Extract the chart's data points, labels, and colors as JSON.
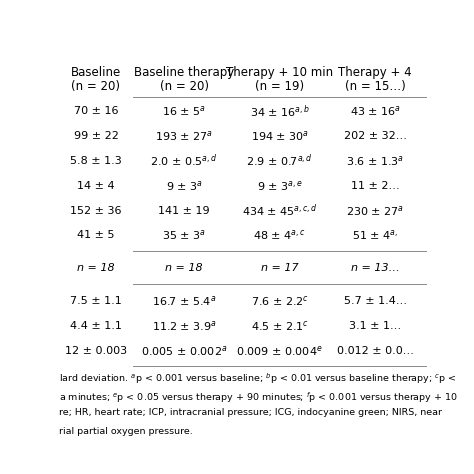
{
  "col_header_top": [
    "Baseline",
    "Baseline therapy",
    "Therapy + 10 min",
    "Therapy + 4⁠"
  ],
  "col_header_bottom": [
    "(n = 20)",
    "(n = 20)",
    "(n = 19)",
    "(n = 15…)"
  ],
  "rows": [
    [
      "70 ± 16",
      "16 ± 5$^{a}$",
      "34 ± 16$^{a,b}$",
      "43 ± 16$^{a}$"
    ],
    [
      "99 ± 22",
      "193 ± 27$^{a}$",
      "194 ± 30$^{a}$",
      "202 ± 32…"
    ],
    [
      "5.8 ± 1.3",
      "2.0 ± 0.5$^{a,d}$",
      "2.9 ± 0.7$^{a,d}$",
      "3.6 ± 1.3$^{a}$"
    ],
    [
      "14 ± 4",
      "9 ± 3$^{a}$",
      "9 ± 3$^{a,e}$",
      "11 ± 2…"
    ],
    [
      "152 ± 36",
      "141 ± 19",
      "434 ± 45$^{a,c,d}$",
      "230 ± 27$^{a}$"
    ],
    [
      "41 ± 5",
      "35 ± 3$^{a}$",
      "48 ± 4$^{a,c}$",
      "51 ± 4$^{a,}$"
    ],
    [
      "n = 18",
      "n = 18",
      "n = 17",
      "n = 13…"
    ],
    [
      "7.5 ± 1.1",
      "16.7 ± 5.4$^{a}$",
      "7.6 ± 2.2$^{c}$",
      "5.7 ± 1.4…"
    ],
    [
      "4.4 ± 1.1",
      "11.2 ± 3.9$^{a}$",
      "4.5 ± 2.1$^{c}$",
      "3.1 ± 1…"
    ],
    [
      "12 ± 0.003",
      "0.005 ± 0.002$^{a}$",
      "0.009 ± 0.004$^{e}$",
      "0.012 ± 0.0…"
    ]
  ],
  "italic_row_indices": [
    6
  ],
  "separator_after_rows": [
    5,
    6,
    9
  ],
  "footnote_lines": [
    "lard deviation. $^{a}$p < 0.001 versus baseline; $^{b}$p < 0.01 versus baseline therapy; $^{c}$p <",
    "a minutes; $^{e}$p < 0.05 versus therapy + 90 minutes; $^{f}$p < 0.001 versus therapy + 10",
    "re; HR, heart rate; ICP, intracranial pressure; ICG, indocyanine green; NIRS, near",
    "rial partial oxygen pressure."
  ],
  "bg_color": "#ffffff",
  "text_color": "#000000",
  "font_size": 8.0,
  "header_font_size": 8.5,
  "footnote_font_size": 6.8
}
